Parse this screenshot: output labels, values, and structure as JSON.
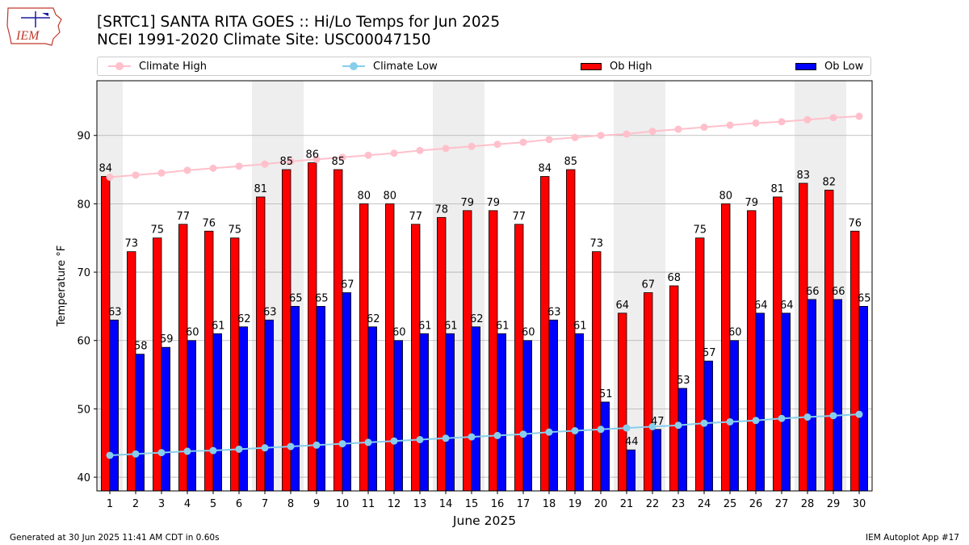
{
  "header": {
    "logo_text": "IEM",
    "title_line1": "[SRTC1] SANTA RITA GOES :: Hi/Lo Temps for Jun 2025",
    "title_line2": "NCEI 1991-2020 Climate Site: USC00047150"
  },
  "legend": {
    "items": [
      {
        "label": "Climate High",
        "kind": "line",
        "color": "#ffc0cb"
      },
      {
        "label": "Climate Low",
        "kind": "line",
        "color": "#87ceeb"
      },
      {
        "label": "Ob High",
        "kind": "box",
        "color": "#ff0000"
      },
      {
        "label": "Ob Low",
        "kind": "box",
        "color": "#0000ff"
      }
    ]
  },
  "footer": {
    "left": "Generated at 30 Jun 2025 11:41 AM CDT in 0.60s",
    "right": "IEM Autoplot App #17"
  },
  "chart_data": {
    "type": "bar",
    "xlabel": "June 2025",
    "ylabel": "Temperature °F",
    "ylim": [
      38,
      98
    ],
    "yticks": [
      40,
      50,
      60,
      70,
      80,
      90
    ],
    "grid": true,
    "legend_position": "top",
    "categories": [
      "1",
      "2",
      "3",
      "4",
      "5",
      "6",
      "7",
      "8",
      "9",
      "10",
      "11",
      "12",
      "13",
      "14",
      "15",
      "16",
      "17",
      "18",
      "19",
      "20",
      "21",
      "22",
      "23",
      "24",
      "25",
      "26",
      "27",
      "28",
      "29",
      "30"
    ],
    "weekend_days": [
      1,
      7,
      8,
      14,
      15,
      21,
      22,
      28,
      29
    ],
    "series": [
      {
        "name": "Ob High",
        "type": "bar",
        "color": "#ff0000",
        "values": [
          84,
          73,
          75,
          77,
          76,
          75,
          81,
          85,
          86,
          85,
          80,
          80,
          77,
          78,
          79,
          79,
          77,
          84,
          85,
          73,
          64,
          67,
          68,
          75,
          80,
          79,
          81,
          83,
          82,
          76
        ]
      },
      {
        "name": "Ob Low",
        "type": "bar",
        "color": "#0000ff",
        "values": [
          63,
          58,
          59,
          60,
          61,
          62,
          63,
          65,
          65,
          67,
          62,
          60,
          61,
          61,
          62,
          61,
          60,
          63,
          61,
          51,
          44,
          47,
          53,
          57,
          60,
          64,
          64,
          66,
          66,
          65
        ]
      },
      {
        "name": "Climate High",
        "type": "line",
        "color": "#ffc0cb",
        "values": [
          83.9,
          84.2,
          84.5,
          84.9,
          85.2,
          85.5,
          85.8,
          86.2,
          86.5,
          86.8,
          87.1,
          87.4,
          87.8,
          88.1,
          88.4,
          88.7,
          89.0,
          89.4,
          89.7,
          90.0,
          90.2,
          90.6,
          90.9,
          91.2,
          91.5,
          91.8,
          92.0,
          92.3,
          92.6,
          92.8
        ]
      },
      {
        "name": "Climate Low",
        "type": "line",
        "color": "#87ceeb",
        "values": [
          43.2,
          43.4,
          43.6,
          43.8,
          43.9,
          44.1,
          44.3,
          44.5,
          44.7,
          44.9,
          45.1,
          45.3,
          45.5,
          45.7,
          45.9,
          46.1,
          46.3,
          46.6,
          46.8,
          47.0,
          47.2,
          47.4,
          47.6,
          47.9,
          48.1,
          48.3,
          48.6,
          48.8,
          49.0,
          49.2
        ]
      }
    ]
  }
}
